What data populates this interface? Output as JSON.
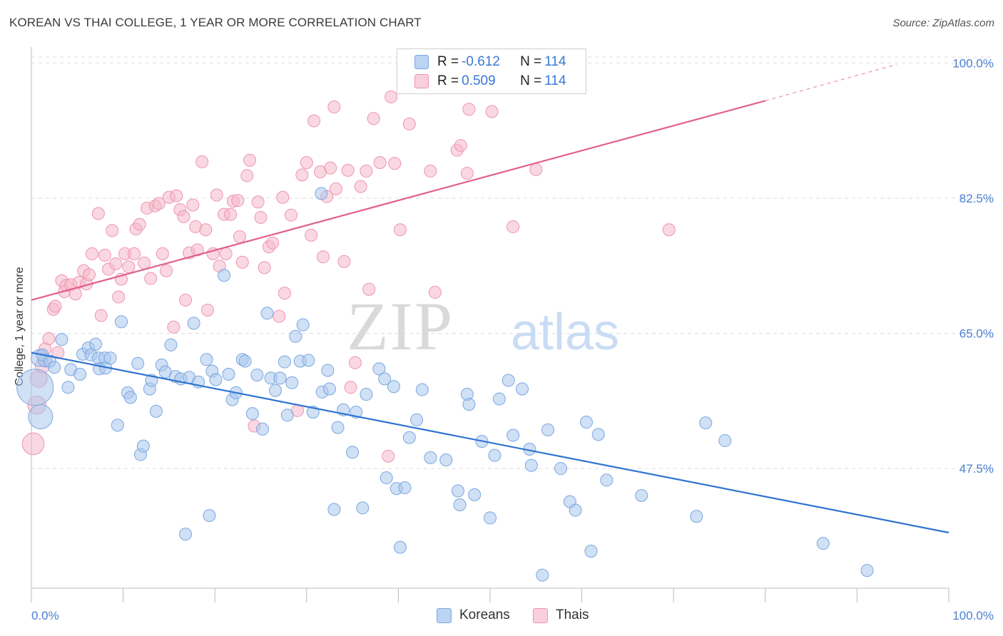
{
  "header": {
    "title": "KOREAN VS THAI COLLEGE, 1 YEAR OR MORE CORRELATION CHART",
    "source": "Source: ZipAtlas.com"
  },
  "watermark": {
    "zip": "ZIP",
    "atlas": "atlas"
  },
  "legend_top": {
    "rows": [
      {
        "r_label": "R = ",
        "r_value": "-0.612",
        "n_label": "N = ",
        "n_value": "114"
      },
      {
        "r_label": "R = ",
        "r_value": "0.509",
        "n_label": "N = ",
        "n_value": "114"
      }
    ]
  },
  "legend_bottom": {
    "koreans": "Koreans",
    "thais": "Thais"
  },
  "colors": {
    "korean_fill": "#a9c6ec",
    "korean_stroke": "#7aa7e0",
    "korean_line": "#2f74d0",
    "thai_fill": "#f5b8cb",
    "thai_stroke": "#ee94b1",
    "thai_line": "#e0608c",
    "axis_text": "#4a7fd4",
    "grid": "#dddddd"
  },
  "chart_data": {
    "type": "scatter",
    "title": "KOREAN VS THAI COLLEGE, 1 YEAR OR MORE CORRELATION CHART",
    "xlabel": "",
    "ylabel": "College, 1 year or more",
    "xlim": [
      0,
      100
    ],
    "ylim": [
      32,
      101.5
    ],
    "x_tick_labels": [
      "0.0%",
      "100.0%"
    ],
    "y_ticks": [
      47.5,
      65.0,
      82.5,
      100.0
    ],
    "y_tick_labels": [
      "47.5%",
      "65.0%",
      "82.5%",
      "100.0%"
    ],
    "grid": true,
    "legend_position": "top-center",
    "series": [
      {
        "name": "Koreans",
        "r": -0.612,
        "n": 114,
        "trend": {
          "x": [
            0,
            100
          ],
          "y": [
            62.5,
            39.2
          ]
        },
        "points": [
          [
            0.4,
            58.0,
            3.0
          ],
          [
            1.0,
            54.2,
            2.0
          ],
          [
            0.9,
            61.8,
            1.4
          ],
          [
            1.5,
            61.5,
            1.1
          ],
          [
            1.2,
            62.2,
            1.0
          ],
          [
            2.0,
            61.4,
            1.0
          ],
          [
            2.5,
            60.6,
            1.0
          ],
          [
            3.3,
            64.2,
            1.0
          ],
          [
            4.0,
            58.0,
            1.0
          ],
          [
            4.3,
            60.3,
            1.0
          ],
          [
            5.3,
            59.7,
            1.0
          ],
          [
            5.6,
            62.3,
            1.0
          ],
          [
            6.2,
            63.1,
            1.0
          ],
          [
            6.5,
            62.2,
            1.0
          ],
          [
            7.0,
            63.6,
            1.0
          ],
          [
            7.3,
            61.8,
            1.0
          ],
          [
            7.4,
            60.4,
            1.0
          ],
          [
            8.0,
            61.8,
            1.0
          ],
          [
            8.1,
            60.5,
            1.0
          ],
          [
            8.6,
            61.8,
            1.0
          ],
          [
            9.4,
            53.1,
            1.0
          ],
          [
            9.8,
            66.5,
            1.0
          ],
          [
            10.5,
            57.3,
            1.0
          ],
          [
            10.8,
            56.7,
            1.0
          ],
          [
            11.6,
            61.1,
            1.0
          ],
          [
            11.9,
            49.3,
            1.0
          ],
          [
            12.2,
            50.4,
            1.0
          ],
          [
            12.9,
            57.8,
            1.0
          ],
          [
            13.1,
            58.9,
            1.0
          ],
          [
            13.6,
            54.9,
            1.0
          ],
          [
            14.2,
            60.9,
            1.0
          ],
          [
            14.6,
            60.0,
            1.0
          ],
          [
            15.2,
            63.5,
            1.0
          ],
          [
            15.7,
            59.4,
            1.0
          ],
          [
            16.3,
            59.1,
            1.0
          ],
          [
            16.8,
            39.0,
            1.0
          ],
          [
            17.2,
            59.3,
            1.0
          ],
          [
            17.7,
            66.3,
            1.0
          ],
          [
            18.2,
            58.7,
            1.0
          ],
          [
            19.1,
            61.6,
            1.0
          ],
          [
            19.4,
            41.4,
            1.0
          ],
          [
            19.7,
            60.1,
            1.0
          ],
          [
            20.1,
            59.0,
            1.0
          ],
          [
            21.0,
            72.5,
            1.0
          ],
          [
            21.5,
            59.7,
            1.0
          ],
          [
            21.9,
            56.4,
            1.0
          ],
          [
            22.3,
            57.3,
            1.0
          ],
          [
            23.0,
            61.6,
            1.0
          ],
          [
            23.3,
            61.4,
            1.0
          ],
          [
            24.1,
            54.6,
            1.0
          ],
          [
            24.6,
            59.6,
            1.0
          ],
          [
            25.2,
            52.6,
            1.0
          ],
          [
            25.7,
            67.6,
            1.0
          ],
          [
            26.1,
            59.2,
            1.0
          ],
          [
            26.6,
            57.6,
            1.0
          ],
          [
            27.1,
            59.2,
            1.0
          ],
          [
            27.6,
            61.3,
            1.0
          ],
          [
            27.9,
            54.4,
            1.0
          ],
          [
            28.4,
            58.6,
            1.0
          ],
          [
            28.8,
            64.6,
            1.0
          ],
          [
            29.3,
            61.4,
            1.0
          ],
          [
            29.6,
            66.1,
            1.0
          ],
          [
            30.2,
            61.5,
            1.0
          ],
          [
            30.7,
            54.8,
            1.0
          ],
          [
            31.6,
            83.1,
            1.0
          ],
          [
            31.7,
            57.4,
            1.0
          ],
          [
            32.3,
            60.2,
            1.0
          ],
          [
            32.5,
            57.8,
            1.0
          ],
          [
            33.0,
            42.2,
            1.0
          ],
          [
            33.4,
            52.8,
            1.0
          ],
          [
            34.0,
            55.1,
            1.0
          ],
          [
            35.0,
            49.6,
            1.0
          ],
          [
            35.4,
            54.8,
            1.0
          ],
          [
            36.1,
            42.4,
            1.0
          ],
          [
            36.5,
            57.1,
            1.0
          ],
          [
            37.9,
            60.4,
            1.0
          ],
          [
            38.5,
            59.1,
            1.0
          ],
          [
            38.7,
            46.3,
            1.0
          ],
          [
            39.5,
            58.1,
            1.0
          ],
          [
            39.8,
            44.9,
            1.0
          ],
          [
            40.2,
            37.3,
            1.0
          ],
          [
            40.7,
            45.0,
            1.0
          ],
          [
            41.2,
            51.5,
            1.0
          ],
          [
            42.0,
            53.8,
            1.0
          ],
          [
            42.6,
            57.7,
            1.0
          ],
          [
            43.5,
            48.9,
            1.0
          ],
          [
            45.2,
            48.6,
            1.0
          ],
          [
            46.5,
            44.6,
            1.0
          ],
          [
            46.7,
            42.8,
            1.0
          ],
          [
            47.5,
            57.1,
            1.0
          ],
          [
            47.7,
            55.8,
            1.0
          ],
          [
            48.3,
            44.1,
            1.0
          ],
          [
            49.1,
            51.0,
            1.0
          ],
          [
            50.0,
            41.1,
            1.0
          ],
          [
            50.5,
            49.2,
            1.0
          ],
          [
            51.0,
            56.5,
            1.0
          ],
          [
            52.0,
            58.9,
            1.0
          ],
          [
            52.5,
            51.8,
            1.0
          ],
          [
            53.5,
            57.8,
            1.0
          ],
          [
            54.3,
            50.0,
            1.0
          ],
          [
            54.5,
            47.9,
            1.0
          ],
          [
            55.7,
            33.7,
            1.0
          ],
          [
            56.3,
            52.5,
            1.0
          ],
          [
            57.7,
            47.5,
            1.0
          ],
          [
            58.7,
            43.2,
            1.0
          ],
          [
            59.3,
            42.1,
            1.0
          ],
          [
            60.5,
            53.5,
            1.0
          ],
          [
            61.0,
            36.8,
            1.0
          ],
          [
            61.8,
            51.9,
            1.0
          ],
          [
            62.7,
            46.0,
            1.0
          ],
          [
            66.5,
            44.0,
            1.0
          ],
          [
            72.5,
            41.3,
            1.0
          ],
          [
            73.5,
            53.4,
            1.0
          ],
          [
            75.6,
            51.1,
            1.0
          ],
          [
            86.3,
            37.8,
            1.0
          ],
          [
            91.1,
            34.3,
            1.0
          ]
        ]
      },
      {
        "name": "Thais",
        "r": 0.509,
        "n": 114,
        "trend": {
          "x": [
            0,
            80.0,
            94.3
          ],
          "y": [
            69.3,
            95.1,
            99.8
          ]
        },
        "points": [
          [
            0.2,
            50.7,
            1.8
          ],
          [
            0.6,
            55.7,
            1.5
          ],
          [
            0.8,
            59.1,
            1.4
          ],
          [
            1.2,
            60.8,
            1.2
          ],
          [
            1.5,
            63.0,
            1.0
          ],
          [
            1.9,
            64.3,
            1.0
          ],
          [
            2.4,
            68.1,
            1.0
          ],
          [
            2.6,
            68.5,
            1.0
          ],
          [
            2.9,
            62.5,
            1.0
          ],
          [
            3.3,
            71.8,
            1.0
          ],
          [
            3.6,
            70.4,
            1.0
          ],
          [
            3.8,
            71.2,
            1.0
          ],
          [
            4.3,
            71.3,
            1.0
          ],
          [
            4.8,
            70.1,
            1.0
          ],
          [
            5.2,
            71.6,
            1.0
          ],
          [
            5.7,
            73.1,
            1.0
          ],
          [
            6.0,
            71.4,
            1.0
          ],
          [
            6.3,
            72.6,
            1.0
          ],
          [
            6.6,
            75.3,
            1.0
          ],
          [
            7.3,
            80.5,
            1.0
          ],
          [
            7.6,
            67.3,
            1.0
          ],
          [
            8.0,
            75.1,
            1.0
          ],
          [
            8.4,
            73.3,
            1.0
          ],
          [
            8.8,
            78.3,
            1.0
          ],
          [
            9.2,
            74.0,
            1.0
          ],
          [
            9.5,
            69.7,
            1.0
          ],
          [
            9.8,
            72.0,
            1.0
          ],
          [
            10.2,
            75.3,
            1.0
          ],
          [
            10.6,
            73.6,
            1.0
          ],
          [
            11.2,
            75.3,
            1.0
          ],
          [
            11.4,
            78.5,
            1.0
          ],
          [
            11.8,
            79.1,
            1.0
          ],
          [
            12.3,
            74.1,
            1.0
          ],
          [
            12.6,
            81.2,
            1.0
          ],
          [
            13.0,
            72.1,
            1.0
          ],
          [
            13.5,
            81.5,
            1.0
          ],
          [
            13.9,
            81.8,
            1.0
          ],
          [
            14.3,
            75.3,
            1.0
          ],
          [
            14.7,
            73.1,
            1.0
          ],
          [
            15.0,
            82.6,
            1.0
          ],
          [
            15.5,
            65.8,
            1.0
          ],
          [
            15.8,
            82.8,
            1.0
          ],
          [
            16.2,
            81.0,
            1.0
          ],
          [
            16.6,
            80.1,
            1.0
          ],
          [
            16.8,
            69.3,
            1.0
          ],
          [
            17.2,
            75.4,
            1.0
          ],
          [
            17.6,
            81.6,
            1.0
          ],
          [
            17.9,
            78.8,
            1.0
          ],
          [
            18.1,
            75.8,
            1.0
          ],
          [
            18.6,
            87.2,
            1.0
          ],
          [
            19.0,
            78.4,
            1.0
          ],
          [
            19.2,
            68.0,
            1.0
          ],
          [
            19.8,
            75.3,
            1.0
          ],
          [
            20.2,
            82.9,
            1.0
          ],
          [
            20.5,
            73.7,
            1.0
          ],
          [
            21.0,
            80.4,
            1.0
          ],
          [
            21.2,
            75.3,
            1.0
          ],
          [
            21.7,
            80.4,
            1.0
          ],
          [
            22.0,
            82.1,
            1.0
          ],
          [
            22.5,
            82.2,
            1.0
          ],
          [
            22.7,
            77.5,
            1.0
          ],
          [
            23.0,
            74.2,
            1.0
          ],
          [
            23.5,
            85.4,
            1.0
          ],
          [
            23.8,
            87.4,
            1.0
          ],
          [
            24.3,
            53.0,
            1.0
          ],
          [
            24.7,
            82.0,
            1.0
          ],
          [
            25.0,
            80.0,
            1.0
          ],
          [
            25.4,
            73.5,
            1.0
          ],
          [
            25.9,
            76.2,
            1.0
          ],
          [
            26.3,
            76.7,
            1.0
          ],
          [
            27.0,
            67.2,
            1.0
          ],
          [
            27.4,
            82.6,
            1.0
          ],
          [
            27.6,
            70.2,
            1.0
          ],
          [
            28.3,
            80.3,
            1.0
          ],
          [
            29.0,
            55.0,
            1.0
          ],
          [
            29.5,
            85.5,
            1.0
          ],
          [
            30.0,
            87.1,
            1.0
          ],
          [
            30.5,
            77.7,
            1.0
          ],
          [
            30.8,
            92.5,
            1.0
          ],
          [
            31.5,
            85.9,
            1.0
          ],
          [
            31.8,
            74.9,
            1.0
          ],
          [
            32.2,
            82.7,
            1.0
          ],
          [
            32.6,
            86.4,
            1.0
          ],
          [
            33.0,
            94.3,
            1.0
          ],
          [
            33.2,
            83.7,
            1.0
          ],
          [
            34.1,
            74.3,
            1.0
          ],
          [
            34.5,
            86.1,
            1.0
          ],
          [
            34.8,
            58.0,
            1.0
          ],
          [
            35.3,
            61.2,
            1.0
          ],
          [
            35.9,
            84.0,
            1.0
          ],
          [
            36.5,
            86.0,
            1.0
          ],
          [
            36.8,
            70.7,
            1.0
          ],
          [
            37.3,
            92.8,
            1.0
          ],
          [
            38.0,
            87.1,
            1.0
          ],
          [
            38.9,
            49.1,
            1.0
          ],
          [
            39.2,
            95.6,
            1.0
          ],
          [
            39.6,
            87.0,
            1.0
          ],
          [
            40.2,
            78.4,
            1.0
          ],
          [
            41.2,
            92.1,
            1.0
          ],
          [
            43.5,
            86.0,
            1.0
          ],
          [
            44.0,
            70.3,
            1.0
          ],
          [
            46.4,
            88.7,
            1.0
          ],
          [
            46.8,
            89.3,
            1.0
          ],
          [
            47.5,
            85.7,
            1.0
          ],
          [
            47.7,
            94.0,
            1.0
          ],
          [
            50.2,
            93.7,
            1.0
          ],
          [
            52.5,
            78.8,
            1.0
          ],
          [
            55.0,
            86.2,
            1.0
          ],
          [
            69.5,
            78.4,
            1.0
          ]
        ]
      }
    ]
  }
}
